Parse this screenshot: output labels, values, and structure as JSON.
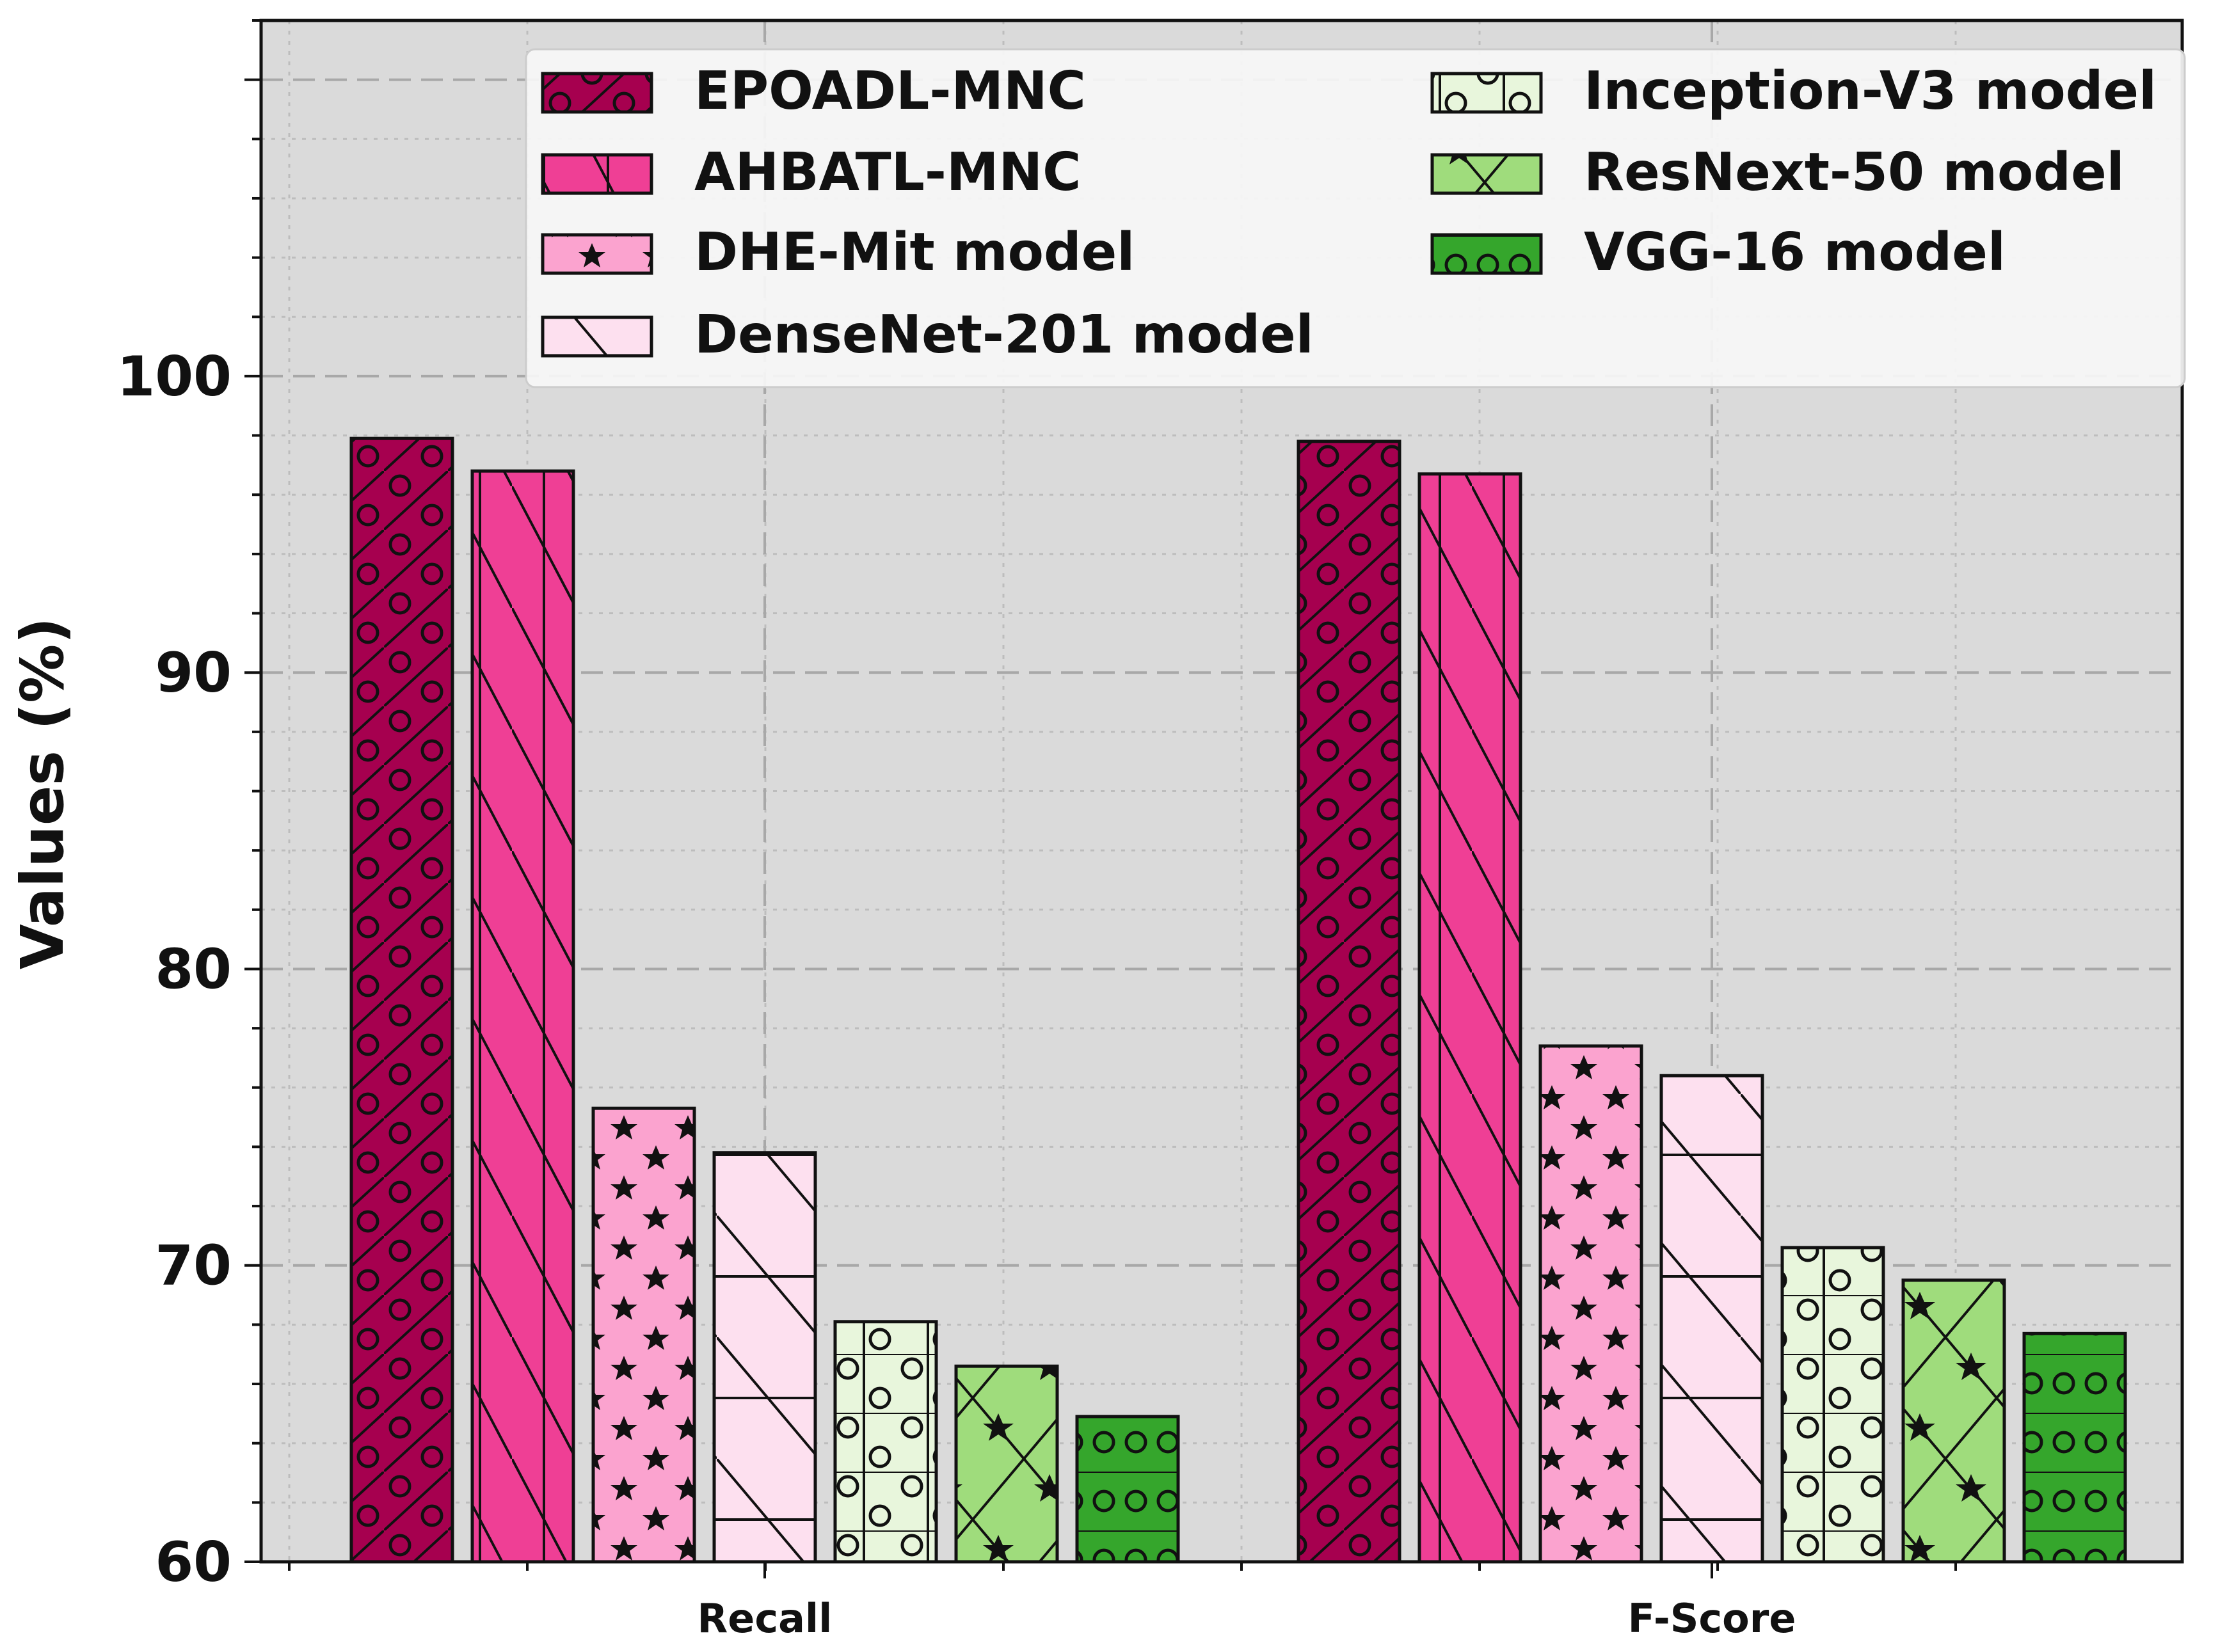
{
  "chart_data": {
    "type": "bar",
    "title": "",
    "xlabel": "",
    "ylabel": "Values (%)",
    "ylim": [
      60,
      112
    ],
    "yticks": [
      60,
      70,
      80,
      90,
      100
    ],
    "grid": true,
    "legend_position": "top",
    "categories": [
      "Recall",
      "F-Score"
    ],
    "series": [
      {
        "name": "EPOADL-MNC",
        "values": [
          97.9,
          97.8
        ],
        "color": "#a6004f",
        "hatch": "circles-diagonal"
      },
      {
        "name": "AHBATL-MNC",
        "values": [
          96.8,
          96.7
        ],
        "color": "#ef3f95",
        "hatch": "vertical-diagonal"
      },
      {
        "name": "DHE-Mit model",
        "values": [
          75.3,
          77.4
        ],
        "color": "#fba3cf",
        "hatch": "stars"
      },
      {
        "name": "DenseNet-201 model",
        "values": [
          73.8,
          76.4
        ],
        "color": "#fde0ef",
        "hatch": "horizontal-diagonal"
      },
      {
        "name": "Inception-V3 model",
        "values": [
          68.1,
          70.6
        ],
        "color": "#e8f6dc",
        "hatch": "grid-circles"
      },
      {
        "name": "ResNext-50 model",
        "values": [
          66.6,
          69.5
        ],
        "color": "#9fdc7c",
        "hatch": "crosshatch-stars"
      },
      {
        "name": "VGG-16 model",
        "values": [
          64.9,
          67.7
        ],
        "color": "#35a62c",
        "hatch": "horizontal-circles"
      }
    ]
  }
}
